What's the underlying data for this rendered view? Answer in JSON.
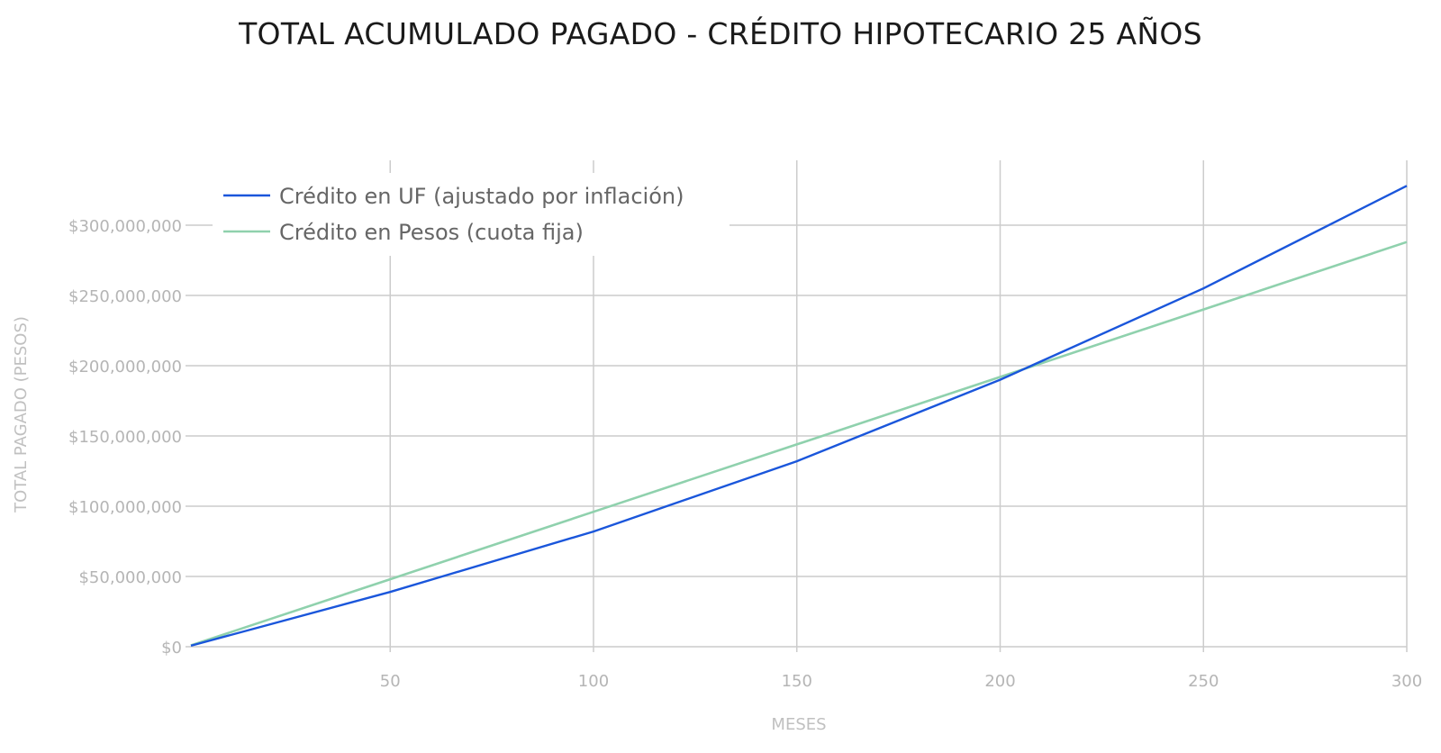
{
  "chart_data": {
    "type": "line",
    "title": "TOTAL ACUMULADO PAGADO - CRÉDITO HIPOTECARIO 25 AÑOS",
    "xlabel": "MESES",
    "ylabel": "TOTAL PAGADO (PESOS)",
    "xlim": [
      1,
      300
    ],
    "ylim": [
      0,
      300000000
    ],
    "x_ticks": [
      50,
      100,
      150,
      200,
      250,
      300
    ],
    "y_ticks": [
      0,
      50000000,
      100000000,
      150000000,
      200000000,
      250000000,
      300000000
    ],
    "y_tick_labels": [
      "$0",
      "$50,000,000",
      "$100,000,000",
      "$150,000,000",
      "$200,000,000",
      "$250,000,000",
      "$300,000,000"
    ],
    "grid": true,
    "legend_position": "top-left",
    "x": [
      1,
      50,
      100,
      150,
      200,
      250,
      300
    ],
    "series": [
      {
        "name": "Crédito en UF (ajustado por inflación)",
        "color": "#1a56db",
        "values": [
          700000,
          39000000,
          82000000,
          132000000,
          190000000,
          255000000,
          328000000
        ]
      },
      {
        "name": "Crédito en Pesos (cuota fija)",
        "color": "#8fd1ad",
        "values": [
          960000,
          48000000,
          96000000,
          144000000,
          192000000,
          240000000,
          288000000
        ]
      }
    ]
  }
}
